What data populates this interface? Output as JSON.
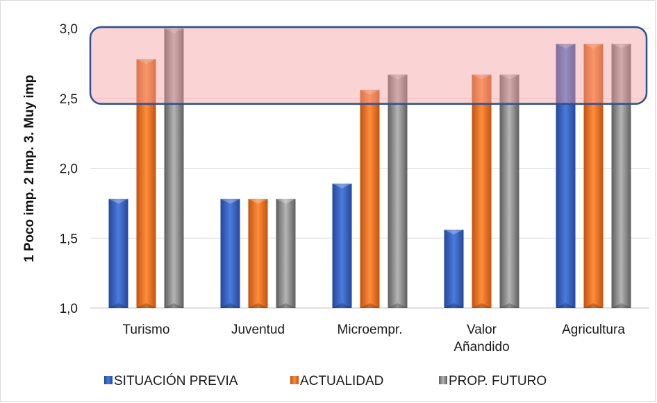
{
  "chart_data": {
    "type": "bar",
    "title": "",
    "xlabel": "",
    "ylabel": "1 Poco imp. 2 Imp. 3. Muy imp",
    "ylim": [
      1.0,
      3.0
    ],
    "yticks": [
      "1,0",
      "1,5",
      "2,0",
      "2,5",
      "3,0"
    ],
    "ytick_values": [
      1.0,
      1.5,
      2.0,
      2.5,
      3.0
    ],
    "grid": true,
    "legend_position": "bottom",
    "categories": [
      {
        "line1": "Turismo",
        "line2": ""
      },
      {
        "line1": "Juventud",
        "line2": ""
      },
      {
        "line1": "Microempr.",
        "line2": ""
      },
      {
        "line1": "Valor",
        "line2": "Añandido"
      },
      {
        "line1": "Agricultura",
        "line2": ""
      }
    ],
    "series": [
      {
        "name": "SITUACIÓN PREVIA",
        "color": "#3a63c4",
        "values": [
          1.78,
          1.78,
          1.89,
          1.56,
          2.89
        ]
      },
      {
        "name": "ACTUALIDAD",
        "color": "#f07a26",
        "values": [
          2.78,
          1.78,
          2.56,
          2.67,
          2.89
        ]
      },
      {
        "name": "PROP. FUTURO",
        "color": "#8c8c8c",
        "values": [
          3.0,
          1.78,
          2.67,
          2.67,
          2.89
        ]
      }
    ],
    "highlight": {
      "y_from": 2.46,
      "y_to": 3.01,
      "fill": "#f4a0a0",
      "stroke": "#2e4f8f"
    }
  }
}
